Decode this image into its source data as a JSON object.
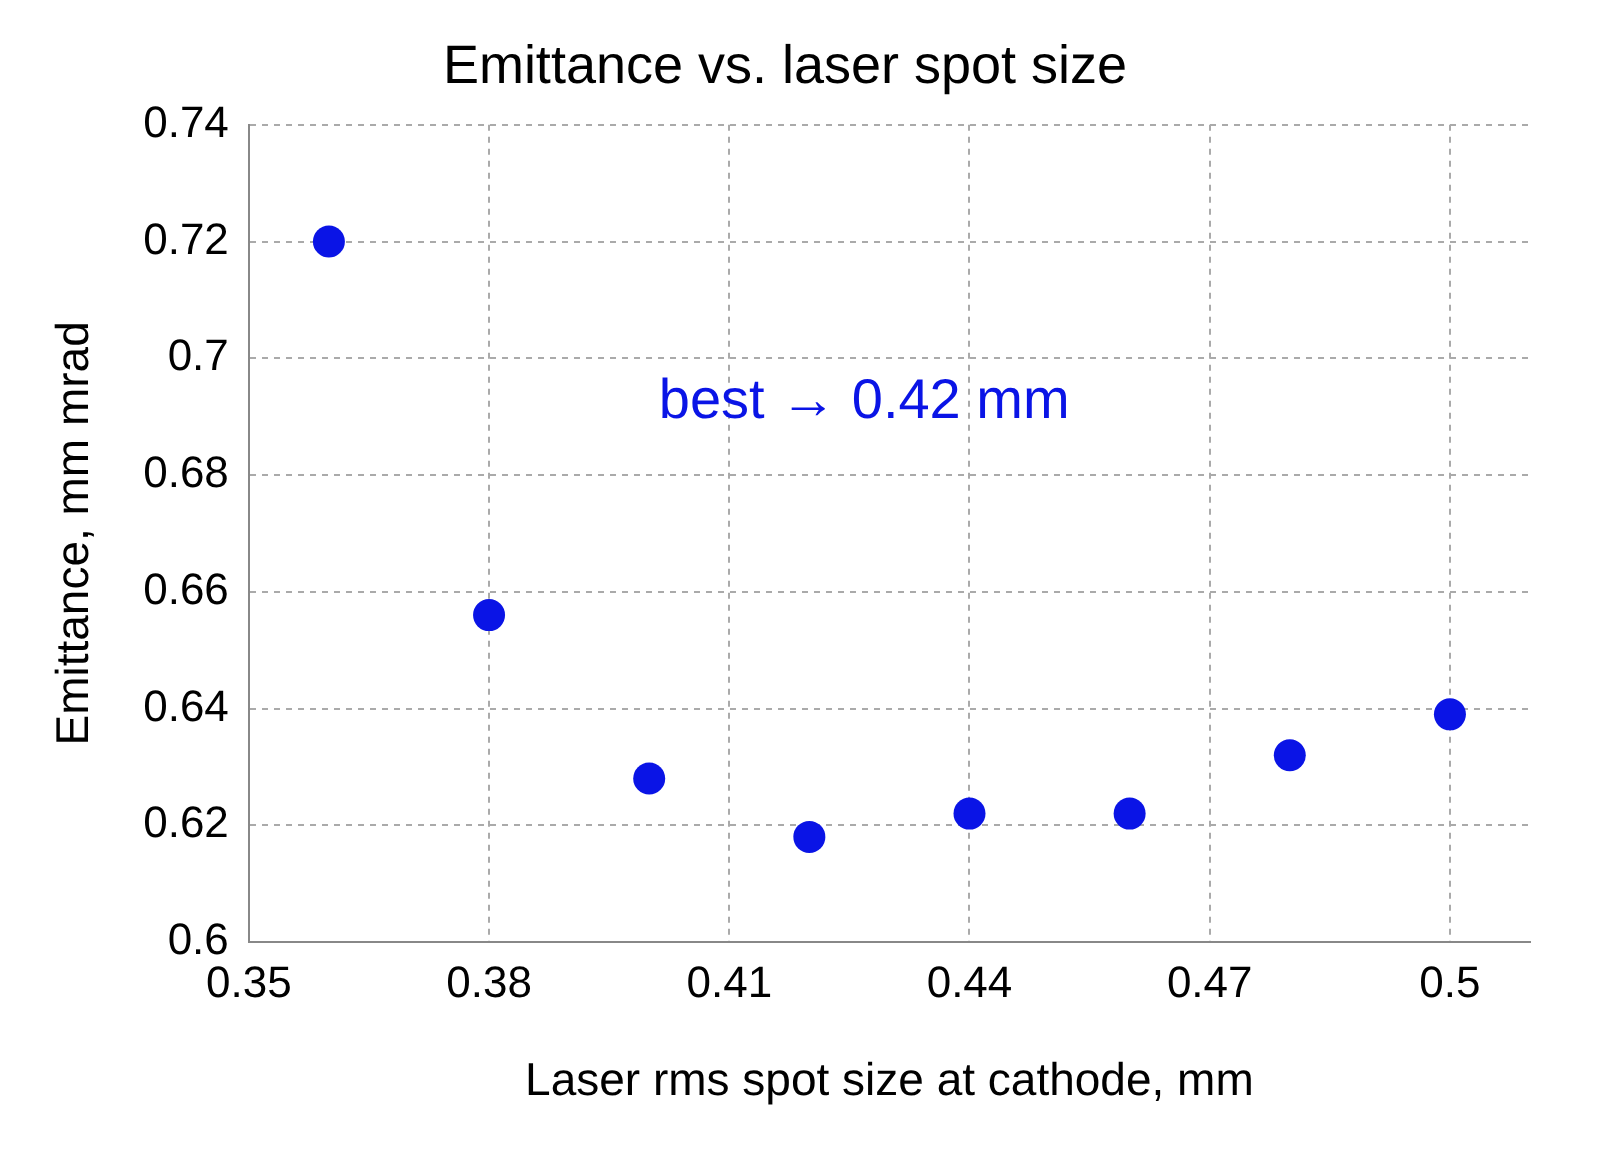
{
  "chart_data": {
    "type": "scatter",
    "title": "Emittance vs. laser spot size",
    "xlabel": "Laser rms spot size at cathode, mm",
    "ylabel": "Emittance, mm mrad",
    "x": [
      0.36,
      0.38,
      0.4,
      0.42,
      0.44,
      0.46,
      0.48,
      0.5
    ],
    "series": [
      {
        "color": "#0a14e6",
        "values": [
          0.72,
          0.656,
          0.628,
          0.618,
          0.622,
          0.622,
          0.632,
          0.639
        ]
      }
    ],
    "xlim": [
      0.35,
      0.51
    ],
    "xticks": [
      0.35,
      0.38,
      0.41,
      0.44,
      0.47,
      0.5
    ],
    "ylim": [
      0.6,
      0.74
    ],
    "yticks": [
      0.6,
      0.62,
      0.64,
      0.66,
      0.68,
      0.7,
      0.72,
      0.74
    ],
    "grid": true,
    "legend": false,
    "marker": "circle",
    "annotations": [
      "best → 0.42 mm"
    ]
  }
}
